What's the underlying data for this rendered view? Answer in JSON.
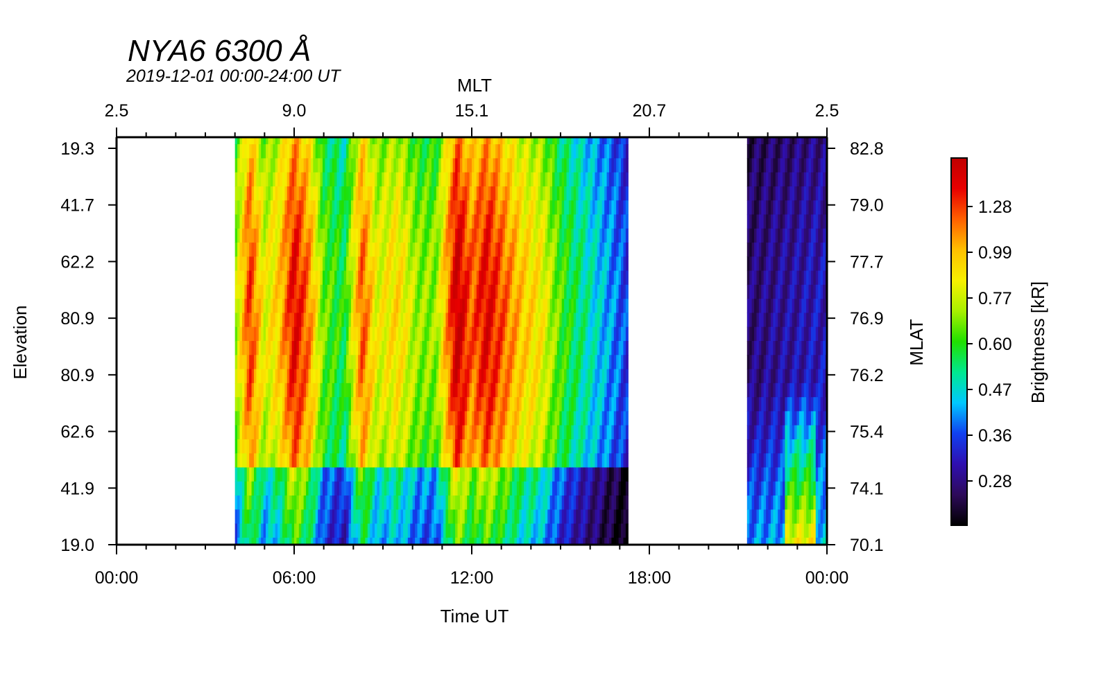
{
  "chart_data": {
    "type": "heatmap",
    "title": "NYA6 6300 Å",
    "subtitle": "2019-12-01 00:00-24:00 UT",
    "xlabel": "Time UT",
    "x_top_label": "MLT",
    "ylabel_left": "Elevation",
    "ylabel_right": "MLAT",
    "colorbar_label": "Brightness [kR]",
    "x_ticks": [
      "00:00",
      "06:00",
      "12:00",
      "18:00",
      "00:00"
    ],
    "x_range_hours": [
      0,
      24
    ],
    "mlt_ticks": [
      "2.5",
      "9.0",
      "15.1",
      "20.7",
      "2.5"
    ],
    "elevation_ticks": [
      "19.3",
      "41.7",
      "62.2",
      "80.9",
      "80.9",
      "62.6",
      "41.9",
      "19.0"
    ],
    "mlat_ticks": [
      "82.8",
      "79.0",
      "77.7",
      "76.9",
      "76.2",
      "75.4",
      "74.1",
      "70.1"
    ],
    "colorbar_ticks": [
      "1.28",
      "0.99",
      "0.77",
      "0.60",
      "0.47",
      "0.36",
      "0.28"
    ],
    "data_coverage_hours": [
      [
        4.0,
        17.3
      ],
      [
        21.3,
        24.0
      ]
    ],
    "colormap": [
      "#000000",
      "#2d0a5a",
      "#2f0fb0",
      "#1040f0",
      "#00c8ff",
      "#00e890",
      "#20e000",
      "#a8f000",
      "#f8f000",
      "#ffc000",
      "#ff6000",
      "#e80000",
      "#c00000"
    ],
    "intensity_profile": [
      {
        "t": 4.0,
        "v": 0.55
      },
      {
        "t": 4.5,
        "v": 0.85
      },
      {
        "t": 5.0,
        "v": 0.62
      },
      {
        "t": 5.5,
        "v": 0.7
      },
      {
        "t": 6.0,
        "v": 0.9
      },
      {
        "t": 6.5,
        "v": 0.78
      },
      {
        "t": 7.0,
        "v": 0.52
      },
      {
        "t": 7.7,
        "v": 0.45
      },
      {
        "t": 8.3,
        "v": 0.82
      },
      {
        "t": 8.8,
        "v": 0.62
      },
      {
        "t": 9.5,
        "v": 0.68
      },
      {
        "t": 10.2,
        "v": 0.55
      },
      {
        "t": 10.8,
        "v": 0.55
      },
      {
        "t": 11.5,
        "v": 0.95
      },
      {
        "t": 12.0,
        "v": 0.8
      },
      {
        "t": 12.5,
        "v": 0.9
      },
      {
        "t": 13.0,
        "v": 0.82
      },
      {
        "t": 13.7,
        "v": 0.7
      },
      {
        "t": 14.3,
        "v": 0.66
      },
      {
        "t": 15.0,
        "v": 0.5
      },
      {
        "t": 15.6,
        "v": 0.42
      },
      {
        "t": 16.2,
        "v": 0.35
      },
      {
        "t": 16.8,
        "v": 0.28
      },
      {
        "t": 17.3,
        "v": 0.22
      },
      {
        "t": 21.3,
        "v": 0.12
      },
      {
        "t": 22.3,
        "v": 0.16
      },
      {
        "t": 23.0,
        "v": 0.18
      },
      {
        "t": 23.5,
        "v": 0.2
      },
      {
        "t": 24.0,
        "v": 0.2
      }
    ]
  }
}
